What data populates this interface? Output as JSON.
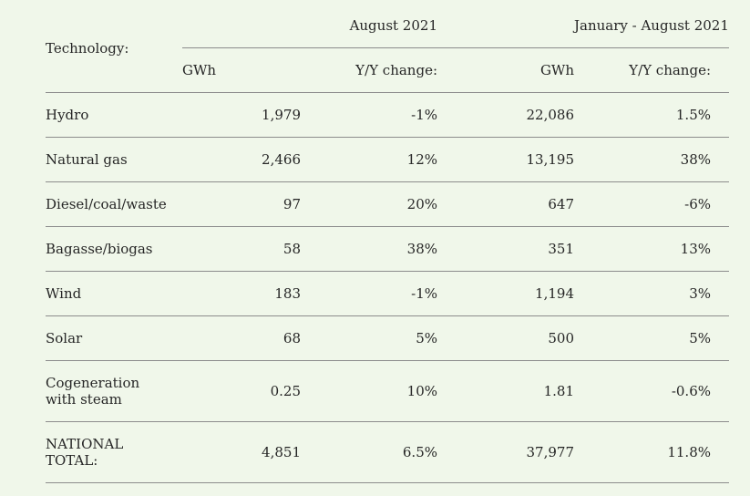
{
  "header": {
    "technology_label": "Technology:",
    "period1_label": "August 2021",
    "period2_label": "January - August 2021",
    "gwh_label_1": "GWh",
    "yy_label_1": "Y/Y change:",
    "gwh_label_2": "GWh",
    "yy_label_2": "Y/Y change:"
  },
  "rows": [
    {
      "technology": "Hydro",
      "aug_gwh": "1,979",
      "aug_yy": "-1%",
      "ytd_gwh": "22,086",
      "ytd_yy": "1.5%"
    },
    {
      "technology": "Natural gas",
      "aug_gwh": "2,466",
      "aug_yy": "12%",
      "ytd_gwh": "13,195",
      "ytd_yy": "38%"
    },
    {
      "technology": "Diesel/coal/waste",
      "aug_gwh": "97",
      "aug_yy": "20%",
      "ytd_gwh": "647",
      "ytd_yy": "-6%"
    },
    {
      "technology": "Bagasse/biogas",
      "aug_gwh": "58",
      "aug_yy": "38%",
      "ytd_gwh": "351",
      "ytd_yy": "13%"
    },
    {
      "technology": "Wind",
      "aug_gwh": "183",
      "aug_yy": "-1%",
      "ytd_gwh": "1,194",
      "ytd_yy": "3%"
    },
    {
      "technology": "Solar",
      "aug_gwh": "68",
      "aug_yy": "5%",
      "ytd_gwh": "500",
      "ytd_yy": "5%"
    },
    {
      "technology": "Cogeneration with steam",
      "aug_gwh": "0.25",
      "aug_yy": "10%",
      "ytd_gwh": "1.81",
      "ytd_yy": "-0.6%"
    },
    {
      "technology": "NATIONAL TOTAL:",
      "aug_gwh": "4,851",
      "aug_yy": "6.5%",
      "ytd_gwh": "37,977",
      "ytd_yy": "11.8%"
    }
  ]
}
